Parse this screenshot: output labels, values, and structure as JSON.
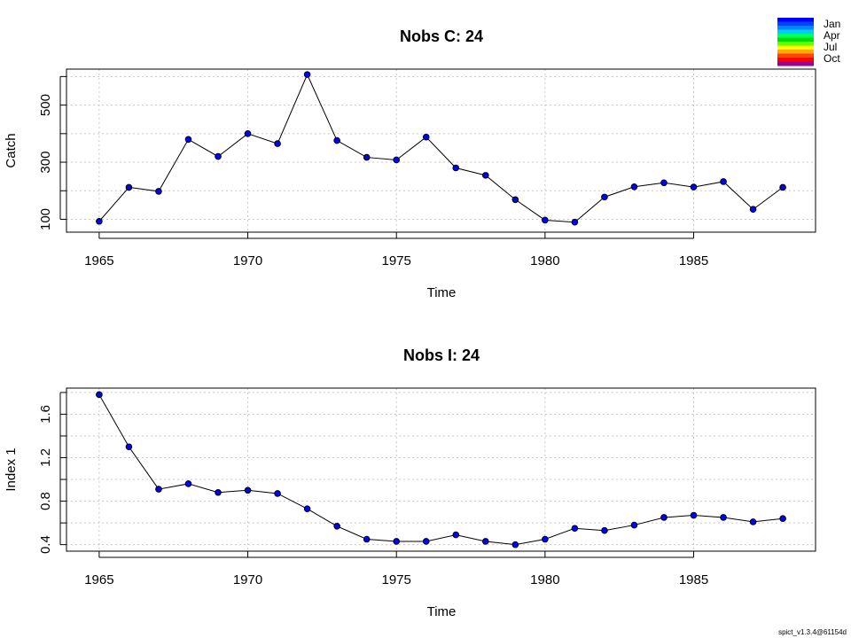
{
  "chart_data": [
    {
      "type": "line",
      "title": "Nobs C: 24",
      "xlabel": "Time",
      "ylabel": "Catch",
      "x": [
        1965,
        1966,
        1967,
        1968,
        1969,
        1970,
        1971,
        1972,
        1973,
        1974,
        1975,
        1976,
        1977,
        1978,
        1979,
        1980,
        1981,
        1982,
        1983,
        1984,
        1985,
        1986,
        1987,
        1988
      ],
      "series": [
        {
          "values": [
            93,
            212,
            198,
            380,
            320,
            400,
            365,
            607,
            376,
            317,
            308,
            388,
            280,
            254,
            169,
            97,
            90,
            178,
            214,
            228,
            213,
            232,
            135,
            212
          ],
          "color": "#0000ff"
        }
      ],
      "xlim": [
        1963.9,
        1989.1
      ],
      "ylim": [
        55,
        626
      ],
      "x_ticks": [
        1965,
        1970,
        1975,
        1980,
        1985
      ],
      "x_tick_labels": [
        "1965",
        "1970",
        "1975",
        "1980",
        "1985"
      ],
      "y_ticks": [
        100,
        300,
        500
      ],
      "y_tick_labels": [
        "100",
        "300",
        "500"
      ],
      "y_minor_ticks": [
        100,
        200,
        300,
        400,
        500,
        600
      ],
      "y_grid": [
        100,
        200,
        300,
        400,
        500,
        600
      ],
      "grid": true
    },
    {
      "type": "line",
      "title": "Nobs I: 24",
      "xlabel": "Time",
      "ylabel": "Index 1",
      "x": [
        1965,
        1966,
        1967,
        1968,
        1969,
        1970,
        1971,
        1972,
        1973,
        1974,
        1975,
        1976,
        1977,
        1978,
        1979,
        1980,
        1981,
        1982,
        1983,
        1984,
        1985,
        1986,
        1987,
        1988
      ],
      "series": [
        {
          "values": [
            1.78,
            1.3,
            0.91,
            0.96,
            0.88,
            0.9,
            0.87,
            0.73,
            0.57,
            0.45,
            0.43,
            0.43,
            0.49,
            0.43,
            0.4,
            0.45,
            0.55,
            0.53,
            0.58,
            0.65,
            0.67,
            0.65,
            0.61,
            0.64
          ],
          "color": "#0000ff"
        }
      ],
      "xlim": [
        1963.9,
        1989.1
      ],
      "ylim": [
        0.34,
        1.84
      ],
      "x_ticks": [
        1965,
        1970,
        1975,
        1980,
        1985
      ],
      "x_tick_labels": [
        "1965",
        "1970",
        "1975",
        "1980",
        "1985"
      ],
      "y_ticks": [
        0.4,
        0.8,
        1.2,
        1.6
      ],
      "y_tick_labels": [
        "0.4",
        "0.8",
        "1.2",
        "1.6"
      ],
      "y_minor_ticks": [
        0.4,
        0.6,
        0.8,
        1.0,
        1.2,
        1.4,
        1.6,
        1.8
      ],
      "y_grid": [
        0.4,
        0.6,
        0.8,
        1.0,
        1.2,
        1.4,
        1.6,
        1.8
      ],
      "grid": true
    }
  ],
  "legend": {
    "placement": "top-right",
    "labels": [
      "Jan",
      "Apr",
      "Jul",
      "Oct"
    ],
    "colors": [
      "#0000ff",
      "#0044ff",
      "#0088ff",
      "#00ccff",
      "#00ff66",
      "#00dd00",
      "#66ff00",
      "#ffff00",
      "#ffaa00",
      "#ff4400",
      "#ff0000",
      "#990099"
    ]
  },
  "footer_text": "spict_v1.3.4@61154d"
}
